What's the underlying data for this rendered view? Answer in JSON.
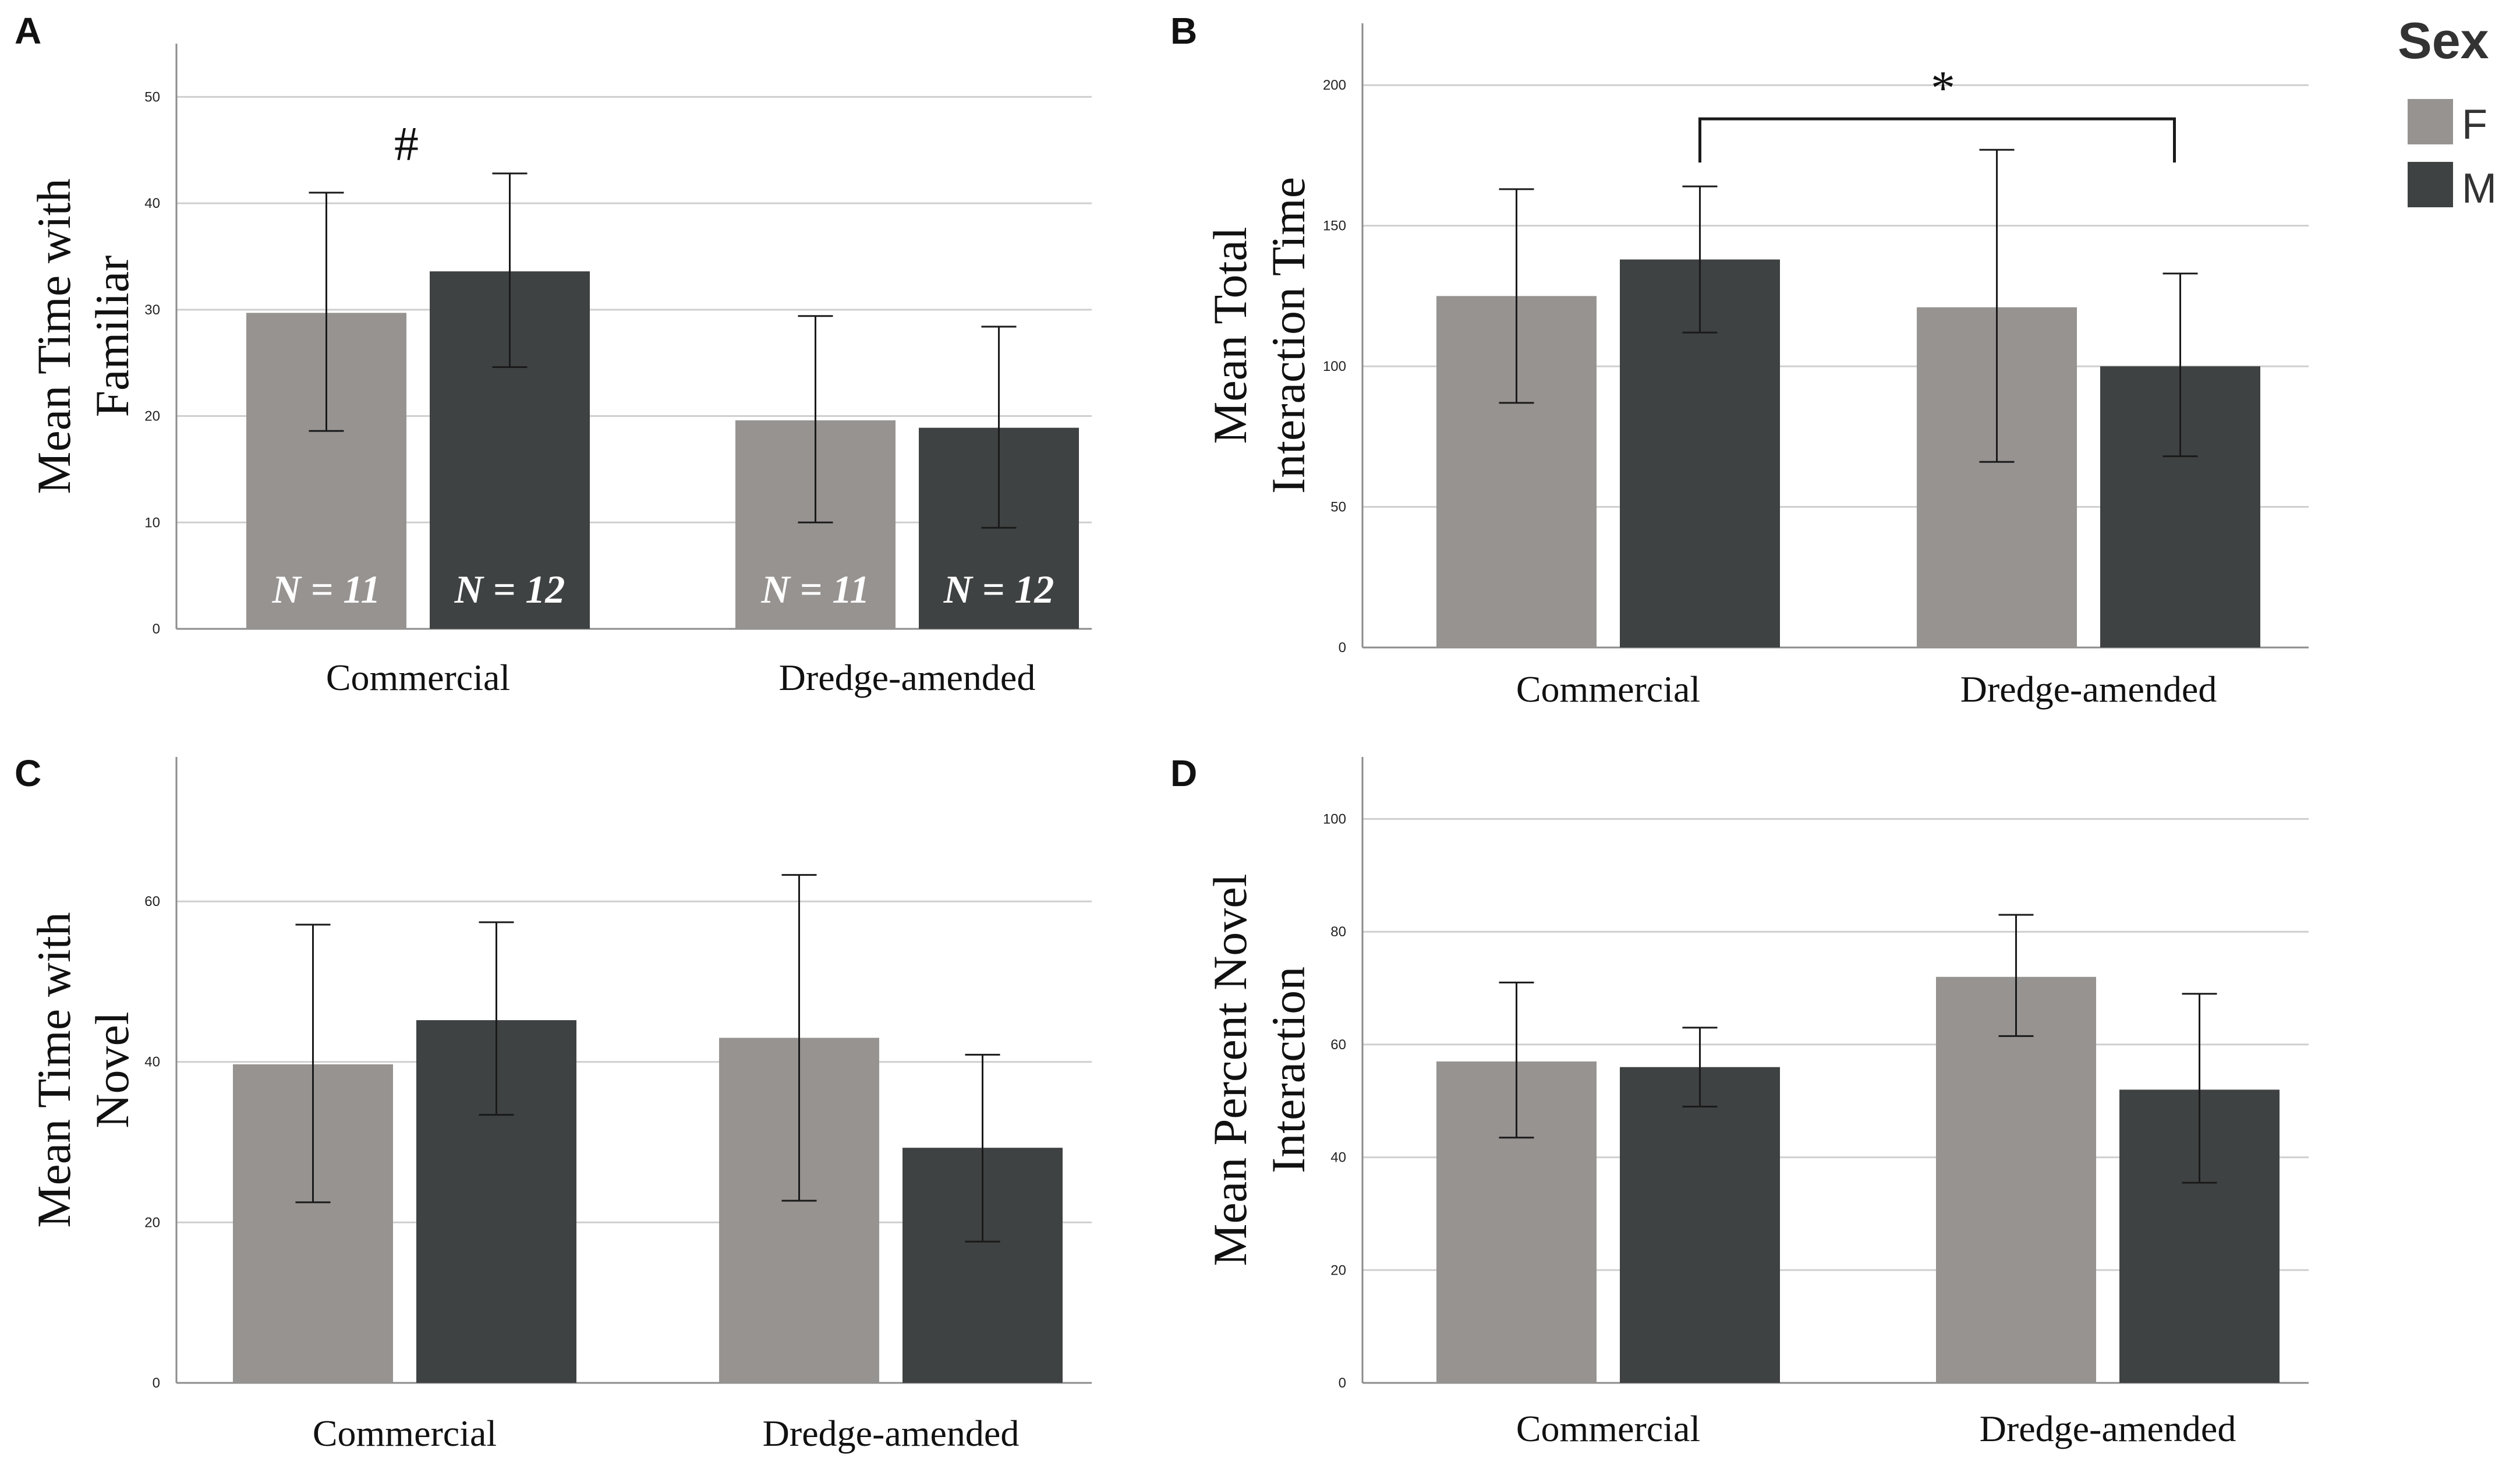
{
  "colors": {
    "F": "#979391",
    "M": "#3f4242",
    "grid": "#cfcfcf",
    "axis": "#8c8c8c",
    "error": "#1a1a1a"
  },
  "legend": {
    "title": "Sex",
    "items": [
      {
        "label": "F",
        "color": "#979391"
      },
      {
        "label": "M",
        "color": "#3f4242"
      }
    ]
  },
  "chart_data": [
    {
      "panel": "A",
      "type": "bar",
      "ylabel": [
        "Mean Time with",
        "Familiar"
      ],
      "ylim": [
        0,
        55
      ],
      "ticks": [
        0,
        10,
        20,
        30,
        40,
        50
      ],
      "categories": [
        "Commercial",
        "Dredge-amended"
      ],
      "series": [
        {
          "name": "F",
          "values": [
            29.7,
            19.6
          ],
          "err_low": [
            18.6,
            10.0
          ],
          "err_high": [
            41.0,
            29.4
          ]
        },
        {
          "name": "M",
          "values": [
            33.6,
            18.9
          ],
          "err_low": [
            24.6,
            9.5
          ],
          "err_high": [
            42.8,
            28.4
          ]
        }
      ],
      "n_labels": [
        [
          "N = 11",
          "N = 12"
        ],
        [
          "N = 11",
          "N = 12"
        ]
      ],
      "annotation": {
        "text": "#",
        "category": 0
      }
    },
    {
      "panel": "B",
      "type": "bar",
      "ylabel": [
        "Mean Total",
        "Interaction Time"
      ],
      "ylim": [
        0,
        222
      ],
      "ticks": [
        0,
        50,
        100,
        150,
        200
      ],
      "categories": [
        "Commercial",
        "Dredge-amended"
      ],
      "series": [
        {
          "name": "F",
          "values": [
            125,
            121
          ],
          "err_low": [
            87,
            66
          ],
          "err_high": [
            163,
            177
          ]
        },
        {
          "name": "M",
          "values": [
            138,
            100
          ],
          "err_low": [
            112,
            68
          ],
          "err_high": [
            164,
            133
          ]
        }
      ],
      "bracket": {
        "text": "*",
        "from": {
          "category": 0,
          "series": 1
        },
        "to": {
          "category": 1,
          "series": 1
        },
        "y": 188
      }
    },
    {
      "panel": "C",
      "type": "bar",
      "ylabel": [
        "Mean Time with",
        "Novel"
      ],
      "ylim": [
        0,
        78
      ],
      "ticks": [
        0,
        20,
        40,
        60
      ],
      "categories": [
        "Commercial",
        "Dredge-amended"
      ],
      "series": [
        {
          "name": "F",
          "values": [
            39.7,
            43.0
          ],
          "err_low": [
            22.5,
            22.7
          ],
          "err_high": [
            57.1,
            63.3
          ]
        },
        {
          "name": "M",
          "values": [
            45.2,
            29.3
          ],
          "err_low": [
            33.4,
            17.6
          ],
          "err_high": [
            57.4,
            40.9
          ]
        }
      ]
    },
    {
      "panel": "D",
      "type": "bar",
      "ylabel": [
        "Mean Percent Novel",
        "Interaction"
      ],
      "ylim": [
        0,
        111
      ],
      "ticks": [
        0,
        20,
        40,
        60,
        80,
        100
      ],
      "categories": [
        "Commercial",
        "Dredge-amended"
      ],
      "series": [
        {
          "name": "F",
          "values": [
            57.0,
            72.0
          ],
          "err_low": [
            43.5,
            61.5
          ],
          "err_high": [
            71.0,
            83.0
          ]
        },
        {
          "name": "M",
          "values": [
            56.0,
            52.0
          ],
          "err_low": [
            49.0,
            35.5
          ],
          "err_high": [
            63.0,
            69.0
          ]
        }
      ]
    }
  ]
}
